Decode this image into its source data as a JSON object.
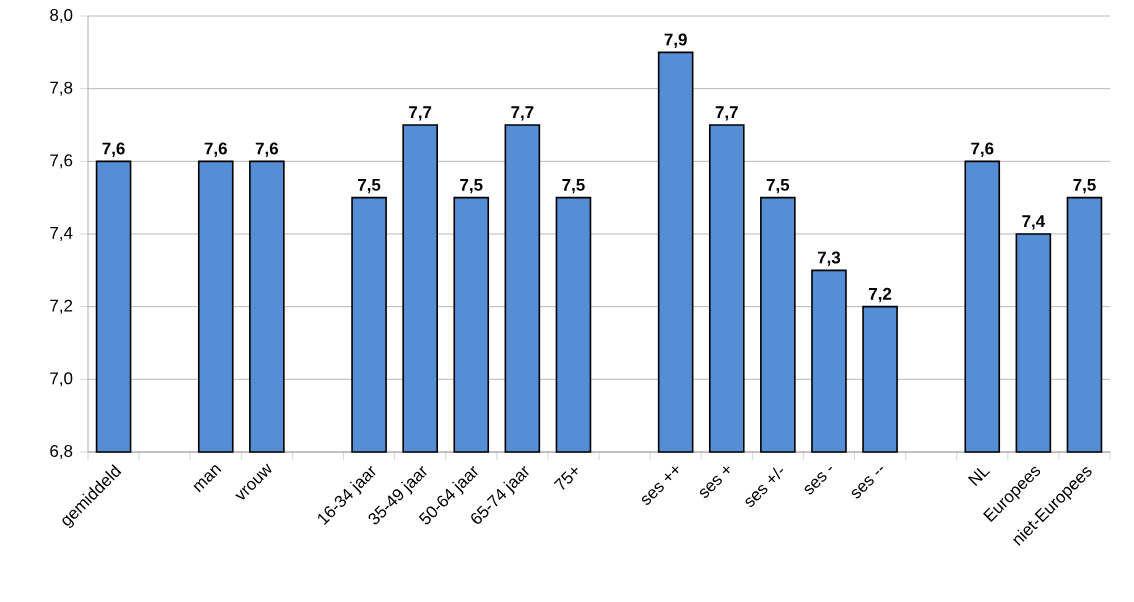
{
  "chart_data": {
    "type": "bar",
    "categories": [
      "gemiddeld",
      null,
      "man",
      "vrouw",
      null,
      "16-34 jaar",
      "35-49 jaar",
      "50-64 jaar",
      "65-74 jaar",
      "75+",
      null,
      "ses ++",
      "ses +",
      "ses +/-",
      "ses -",
      "ses --",
      null,
      "NL",
      "Europees",
      "niet-Europees"
    ],
    "values": [
      7.6,
      null,
      7.6,
      7.6,
      null,
      7.5,
      7.7,
      7.5,
      7.7,
      7.5,
      null,
      7.9,
      7.7,
      7.5,
      7.3,
      7.2,
      null,
      7.6,
      7.4,
      7.5
    ],
    "value_labels": [
      "7,6",
      null,
      "7,6",
      "7,6",
      null,
      "7,5",
      "7,7",
      "7,5",
      "7,7",
      "7,5",
      null,
      "7,9",
      "7,7",
      "7,5",
      "7,3",
      "7,2",
      null,
      "7,6",
      "7,4",
      "7,5"
    ],
    "color": "#558ed5",
    "ylim": [
      6.8,
      8.0
    ],
    "yticks": [
      {
        "value": 6.8,
        "label": "6,8"
      },
      {
        "value": 7.0,
        "label": "7,0"
      },
      {
        "value": 7.2,
        "label": "7,2"
      },
      {
        "value": 7.4,
        "label": "7,4"
      },
      {
        "value": 7.6,
        "label": "7,6"
      },
      {
        "value": 7.8,
        "label": "7,8"
      },
      {
        "value": 8.0,
        "label": "8,0"
      }
    ],
    "grid": "y"
  }
}
